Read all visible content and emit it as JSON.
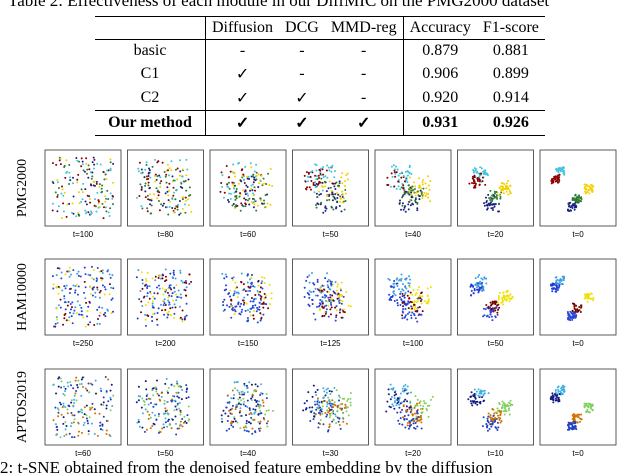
{
  "header_caption": "Table 2: Effectiveness of each module in our DiffMIC on the PMG2000 dataset",
  "table": {
    "columns": [
      "Diffusion",
      "DCG",
      "MMD-reg",
      "Accuracy",
      "F1-score"
    ],
    "rows": [
      [
        "basic",
        "-",
        "-",
        "-",
        "0.879",
        "0.881"
      ],
      [
        "C1",
        "✓",
        "-",
        "-",
        "0.906",
        "0.899"
      ],
      [
        "C2",
        "✓",
        "✓",
        "-",
        "0.920",
        "0.914"
      ],
      [
        "Our method",
        "✓",
        "✓",
        "✓",
        "0.931",
        "0.926"
      ]
    ]
  },
  "figure": {
    "rows": [
      {
        "dataset": "PMG2000",
        "steps": [
          "t=100",
          "t=80",
          "t=60",
          "t=50",
          "t=40",
          "t=20",
          "t=0"
        ]
      },
      {
        "dataset": "HAM10000",
        "steps": [
          "t=250",
          "t=200",
          "t=150",
          "t=125",
          "t=100",
          "t=50",
          "t=0"
        ]
      },
      {
        "dataset": "APTOS2019",
        "steps": [
          "t=60",
          "t=50",
          "t=40",
          "t=30",
          "t=20",
          "t=10",
          "t=0"
        ]
      }
    ]
  },
  "caption": "2: t-SNE obtained from the denoised feature embedding by the diffusion"
}
